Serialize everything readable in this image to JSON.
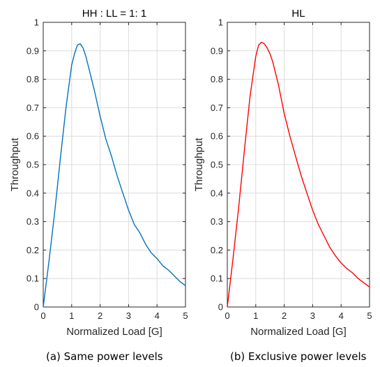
{
  "chart_data": [
    {
      "type": "line",
      "title": "HH : LL = 1: 1",
      "xlabel": "Normalized Load [G]",
      "ylabel": "Throughput",
      "xlim": [
        0,
        5
      ],
      "ylim": [
        0,
        1
      ],
      "xticks": [
        "0",
        "1",
        "2",
        "3",
        "4",
        "5"
      ],
      "yticks": [
        "0",
        "0.1",
        "0.2",
        "0.3",
        "0.4",
        "0.5",
        "0.6",
        "0.7",
        "0.8",
        "0.9",
        "1"
      ],
      "grid": true,
      "color": "#0072BD",
      "series": [
        {
          "x": [
            0,
            0.2,
            0.4,
            0.6,
            0.8,
            1.0,
            1.1,
            1.2,
            1.3,
            1.4,
            1.5,
            1.6,
            1.8,
            2.0,
            2.2,
            2.4,
            2.6,
            2.8,
            3.0,
            3.2,
            3.4,
            3.6,
            3.8,
            4.0,
            4.2,
            4.4,
            4.6,
            4.8,
            5.0
          ],
          "y": [
            0.0,
            0.16,
            0.33,
            0.52,
            0.7,
            0.85,
            0.89,
            0.92,
            0.925,
            0.91,
            0.88,
            0.84,
            0.76,
            0.67,
            0.59,
            0.53,
            0.46,
            0.4,
            0.34,
            0.29,
            0.26,
            0.22,
            0.19,
            0.17,
            0.145,
            0.13,
            0.11,
            0.09,
            0.075
          ]
        }
      ]
    },
    {
      "type": "line",
      "title": "HL",
      "xlabel": "Normalized Load [G]",
      "ylabel": "Throughput",
      "xlim": [
        0,
        5
      ],
      "ylim": [
        0,
        1
      ],
      "xticks": [
        "0",
        "1",
        "2",
        "3",
        "4",
        "5"
      ],
      "yticks": [
        "0",
        "0.1",
        "0.2",
        "0.3",
        "0.4",
        "0.5",
        "0.6",
        "0.7",
        "0.8",
        "0.9",
        "1"
      ],
      "grid": true,
      "color": "#FF0000",
      "series": [
        {
          "x": [
            0,
            0.2,
            0.4,
            0.6,
            0.8,
            1.0,
            1.1,
            1.2,
            1.3,
            1.4,
            1.5,
            1.6,
            1.8,
            2.0,
            2.2,
            2.4,
            2.6,
            2.8,
            3.0,
            3.2,
            3.4,
            3.6,
            3.8,
            4.0,
            4.2,
            4.4,
            4.6,
            4.8,
            5.0
          ],
          "y": [
            0.0,
            0.17,
            0.35,
            0.55,
            0.74,
            0.88,
            0.92,
            0.93,
            0.925,
            0.91,
            0.89,
            0.86,
            0.78,
            0.68,
            0.6,
            0.53,
            0.46,
            0.4,
            0.34,
            0.29,
            0.25,
            0.21,
            0.18,
            0.155,
            0.135,
            0.12,
            0.1,
            0.085,
            0.07
          ]
        }
      ]
    }
  ],
  "captions": [
    "(a) Same power levels",
    "(b) Exclusive power levels"
  ]
}
